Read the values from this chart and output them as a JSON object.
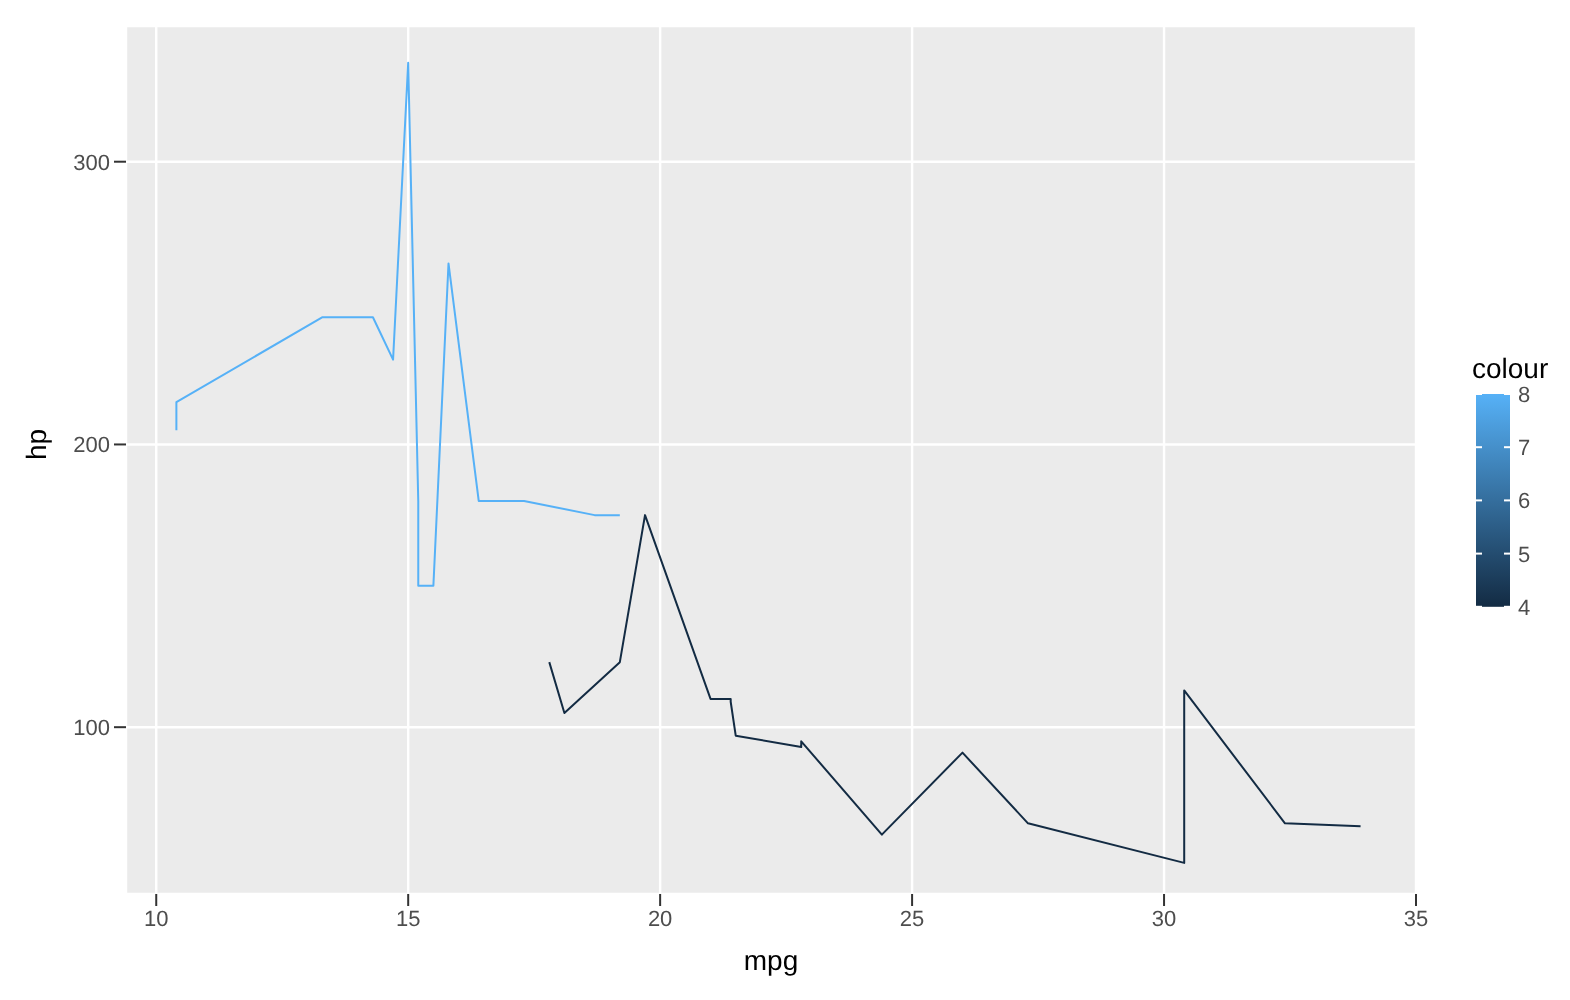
{
  "chart_data": {
    "type": "line",
    "xlabel": "mpg",
    "ylabel": "hp",
    "clabel": "colour",
    "clim": [
      4,
      8
    ],
    "cticks": [
      4,
      5,
      6,
      7,
      8
    ],
    "xlim": [
      9.4,
      35.0
    ],
    "xticks": [
      10,
      15,
      20,
      25,
      30,
      35
    ],
    "ylim": [
      41,
      348
    ],
    "yticks": [
      100,
      200,
      300
    ],
    "grid": true,
    "series": [
      {
        "color": "#132b43",
        "x": [
          17.8,
          18.1,
          19.2,
          19.7,
          21.0,
          21.0,
          21.4,
          21.4,
          21.5,
          22.8,
          22.8,
          24.4,
          26.0,
          27.3,
          30.4,
          30.4,
          32.4,
          33.9
        ],
        "values": [
          123,
          105,
          123,
          175,
          110,
          110,
          110,
          109,
          97,
          93,
          95,
          62,
          91,
          66,
          52,
          113,
          66,
          65
        ]
      },
      {
        "color": "#56b1f7",
        "x": [
          10.4,
          10.4,
          13.3,
          14.3,
          14.7,
          15.0,
          15.2,
          15.2,
          15.5,
          15.8,
          16.4,
          17.3,
          18.7,
          19.2
        ],
        "values": [
          205,
          215,
          245,
          245,
          230,
          335,
          180,
          150,
          150,
          264,
          180,
          180,
          175,
          175
        ]
      }
    ]
  }
}
